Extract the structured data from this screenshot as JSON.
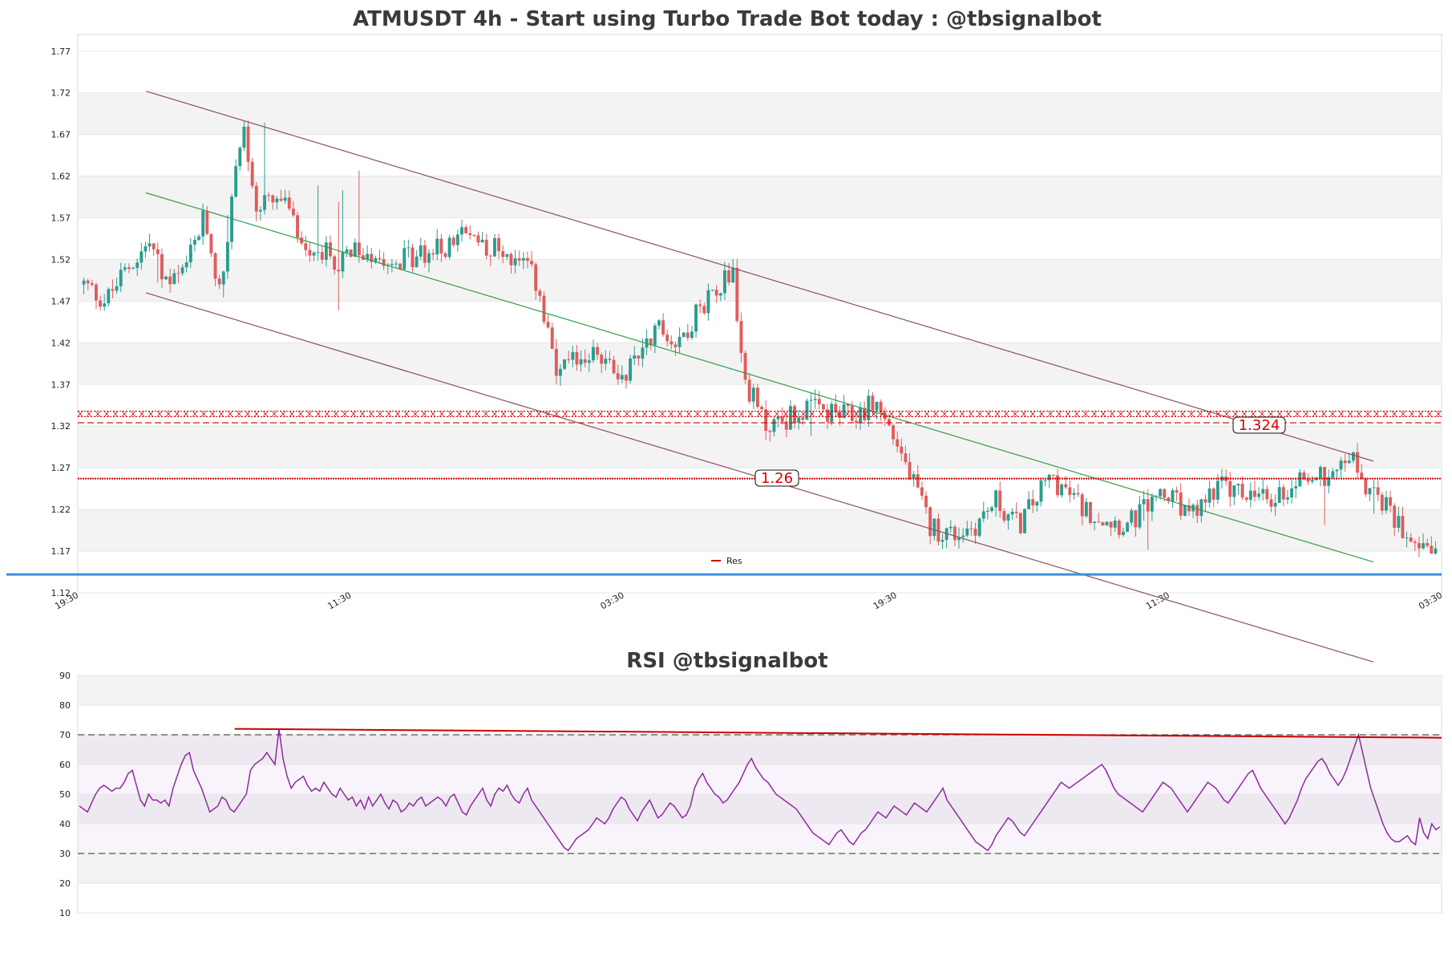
{
  "chart_data": [
    {
      "type": "candlestick",
      "title": "ATMUSDT 4h - Start using Turbo Trade Bot today : @tbsignalbot",
      "ylim": [
        1.12,
        1.79
      ],
      "yticks": [
        "1.77",
        "1.72",
        "1.67",
        "1.62",
        "1.57",
        "1.52",
        "1.47",
        "1.42",
        "1.37",
        "1.32",
        "1.27",
        "1.22",
        "1.17",
        "1.12"
      ],
      "xticks": [
        "19:30",
        "11:30",
        "03:30",
        "19:30",
        "11:30",
        "03:30"
      ],
      "n_candles": 330,
      "levels": [
        {
          "label": "1.324",
          "value": 1.324,
          "style": "resistance-band"
        },
        {
          "label": "1.26",
          "value": 1.257,
          "style": "dotted"
        }
      ],
      "baseline_value": 1.142,
      "legend": [
        "Res"
      ],
      "channel": {
        "upper": [
          [
            0.05,
            1.722
          ],
          [
            0.95,
            1.278
          ]
        ],
        "middle": [
          [
            0.05,
            1.6
          ],
          [
            0.95,
            1.157
          ]
        ],
        "lower": [
          [
            0.05,
            1.48
          ],
          [
            0.95,
            1.037
          ]
        ]
      },
      "close_path": [
        [
          0,
          1.49
        ],
        [
          10,
          1.47
        ],
        [
          20,
          1.51
        ],
        [
          30,
          1.54
        ],
        [
          38,
          1.49
        ],
        [
          45,
          1.5
        ],
        [
          55,
          1.57
        ],
        [
          62,
          1.48
        ],
        [
          68,
          1.6
        ],
        [
          72,
          1.69
        ],
        [
          78,
          1.58
        ],
        [
          90,
          1.59
        ],
        [
          100,
          1.54
        ],
        [
          115,
          1.52
        ],
        [
          130,
          1.53
        ],
        [
          145,
          1.52
        ],
        [
          160,
          1.53
        ],
        [
          175,
          1.55
        ],
        [
          190,
          1.53
        ],
        [
          205,
          1.5
        ],
        [
          215,
          1.38
        ],
        [
          230,
          1.41
        ],
        [
          245,
          1.38
        ],
        [
          260,
          1.44
        ],
        [
          270,
          1.42
        ],
        [
          285,
          1.48
        ],
        [
          295,
          1.51
        ],
        [
          300,
          1.38
        ],
        [
          310,
          1.32
        ],
        [
          330,
          1.34
        ],
        [
          350,
          1.33
        ],
        [
          360,
          1.35
        ],
        [
          370,
          1.3
        ],
        [
          385,
          1.2
        ],
        [
          395,
          1.19
        ],
        [
          405,
          1.2
        ],
        [
          415,
          1.23
        ],
        [
          425,
          1.2
        ],
        [
          440,
          1.26
        ],
        [
          455,
          1.22
        ],
        [
          475,
          1.2
        ],
        [
          490,
          1.24
        ],
        [
          505,
          1.21
        ],
        [
          515,
          1.25
        ],
        [
          525,
          1.24
        ],
        [
          540,
          1.23
        ],
        [
          555,
          1.26
        ],
        [
          565,
          1.26
        ],
        [
          575,
          1.29
        ],
        [
          585,
          1.24
        ],
        [
          600,
          1.2
        ],
        [
          610,
          1.18
        ],
        [
          615,
          1.17
        ]
      ]
    },
    {
      "type": "line",
      "title": "RSI @tbsignalbot",
      "ylim": [
        10,
        90
      ],
      "yticks": [
        "90",
        "80",
        "70",
        "60",
        "50",
        "40",
        "30",
        "20",
        "10"
      ],
      "overbought": 70,
      "oversold": 30,
      "trend_line": [
        [
          0.115,
          72
        ],
        [
          1.0,
          69
        ]
      ],
      "series": [
        46,
        45,
        44,
        47,
        50,
        52,
        53,
        52,
        51,
        52,
        52,
        54,
        57,
        58,
        53,
        48,
        46,
        50,
        48,
        48,
        47,
        48,
        46,
        52,
        56,
        60,
        63,
        64,
        58,
        55,
        52,
        48,
        44,
        45,
        46,
        49,
        48,
        45,
        44,
        46,
        48,
        50,
        58,
        60,
        61,
        62,
        64,
        62,
        60,
        72,
        62,
        56,
        52,
        54,
        55,
        56,
        53,
        51,
        52,
        51,
        54,
        52,
        50,
        49,
        52,
        50,
        48,
        49,
        46,
        48,
        45,
        49,
        46,
        48,
        50,
        47,
        45,
        48,
        47,
        44,
        45,
        47,
        46,
        48,
        49,
        46,
        47,
        48,
        49,
        48,
        46,
        49,
        50,
        47,
        44,
        43,
        46,
        48,
        50,
        52,
        48,
        46,
        50,
        52,
        51,
        53,
        50,
        48,
        47,
        50,
        52,
        48,
        46,
        44,
        42,
        40,
        38,
        36,
        34,
        32,
        31,
        33,
        35,
        36,
        37,
        38,
        40,
        42,
        41,
        40,
        42,
        45,
        47,
        49,
        48,
        45,
        43,
        41,
        44,
        46,
        48,
        45,
        42,
        43,
        45,
        47,
        46,
        44,
        42,
        43,
        46,
        52,
        55,
        57,
        54,
        52,
        50,
        49,
        47,
        48,
        50,
        52,
        54,
        57,
        60,
        62,
        59,
        57,
        55,
        54,
        52,
        50,
        49,
        48,
        47,
        46,
        45,
        43,
        41,
        39,
        37,
        36,
        35,
        34,
        33,
        35,
        37,
        38,
        36,
        34,
        33,
        35,
        37,
        38,
        40,
        42,
        44,
        43,
        42,
        44,
        46,
        45,
        44,
        43,
        45,
        47,
        46,
        45,
        44,
        46,
        48,
        50,
        52,
        48,
        46,
        44,
        42,
        40,
        38,
        36,
        34,
        33,
        32,
        31,
        33,
        36,
        38,
        40,
        42,
        41,
        39,
        37,
        36,
        38,
        40,
        42,
        44,
        46,
        48,
        50,
        52,
        54,
        53,
        52,
        53,
        54,
        55,
        56,
        57,
        58,
        59,
        60,
        58,
        55,
        52,
        50,
        49,
        48,
        47,
        46,
        45,
        44,
        46,
        48,
        50,
        52,
        54,
        53,
        52,
        50,
        48,
        46,
        44,
        46,
        48,
        50,
        52,
        54,
        53,
        52,
        50,
        48,
        47,
        49,
        51,
        53,
        55,
        57,
        58,
        55,
        52,
        50,
        48,
        46,
        44,
        42,
        40,
        42,
        45,
        48,
        52,
        55,
        57,
        59,
        61,
        62,
        60,
        57,
        55,
        53,
        55,
        58,
        62,
        66,
        70,
        64,
        58,
        52,
        48,
        44,
        40,
        37,
        35,
        34,
        34,
        35,
        36,
        34,
        33,
        42,
        37,
        35,
        40,
        38,
        39
      ]
    }
  ]
}
